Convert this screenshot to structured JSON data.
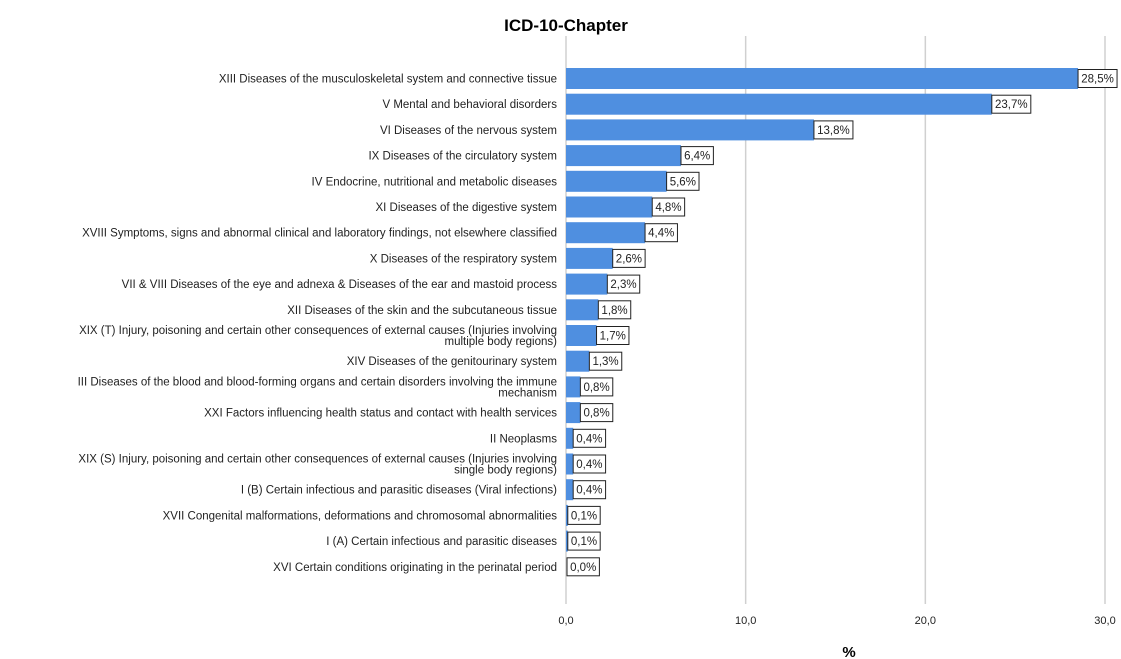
{
  "chart_data": {
    "type": "bar",
    "orientation": "horizontal",
    "title": "ICD-10-Chapter",
    "xlabel": "%",
    "ylabel": "",
    "xlim": [
      0,
      30
    ],
    "ticks": [
      "0,0",
      "10,0",
      "20,0",
      "30,0"
    ],
    "tick_values": [
      0,
      10,
      20,
      30
    ],
    "grid": true,
    "bar_color": "#4f8fe0",
    "categories": [
      [
        "XIII Diseases of the musculoskeletal system and connective tissue"
      ],
      [
        "V Mental and behavioral disorders"
      ],
      [
        "VI Diseases of the nervous system"
      ],
      [
        "IX Diseases of the circulatory system"
      ],
      [
        "IV Endocrine, nutritional and metabolic diseases"
      ],
      [
        "XI Diseases of the digestive system"
      ],
      [
        "XVIII Symptoms, signs and abnormal clinical and laboratory findings, not elsewhere classified"
      ],
      [
        "X Diseases of the respiratory system"
      ],
      [
        "VII & VIII Diseases of the eye and adnexa & Diseases of the ear and mastoid process"
      ],
      [
        "XII Diseases of the skin and the subcutaneous tissue"
      ],
      [
        "XIX (T) Injury, poisoning and certain other consequences of external causes (Injuries involving",
        "multiple body regions)"
      ],
      [
        "XIV Diseases of the genitourinary system"
      ],
      [
        "III Diseases of the blood and blood-forming organs and certain disorders involving the immune",
        "mechanism"
      ],
      [
        "XXI Factors influencing health status and contact with health services"
      ],
      [
        "II Neoplasms"
      ],
      [
        "XIX (S) Injury, poisoning and certain other consequences of external causes (Injuries involving",
        "single body regions)"
      ],
      [
        "I (B) Certain infectious and parasitic diseases (Viral infections)"
      ],
      [
        "XVII Congenital malformations, deformations and chromosomal abnormalities"
      ],
      [
        "I (A) Certain infectious and parasitic diseases"
      ],
      [
        "XVI Certain conditions originating in the perinatal period"
      ]
    ],
    "values": [
      28.5,
      23.7,
      13.8,
      6.4,
      5.6,
      4.8,
      4.4,
      2.6,
      2.3,
      1.8,
      1.7,
      1.3,
      0.8,
      0.8,
      0.4,
      0.4,
      0.4,
      0.1,
      0.1,
      0.0
    ],
    "data_labels": [
      "28,5%",
      "23,7%",
      "13,8%",
      "6,4%",
      "5,6%",
      "4,8%",
      "4,4%",
      "2,6%",
      "2,3%",
      "1,8%",
      "1,7%",
      "1,3%",
      "0,8%",
      "0,8%",
      "0,4%",
      "0,4%",
      "0,4%",
      "0,1%",
      "0,1%",
      "0,0%"
    ]
  }
}
